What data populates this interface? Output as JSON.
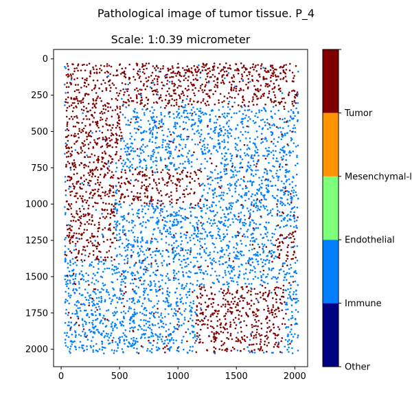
{
  "figure_title": "Pathological image of tumor tissue. P_4",
  "axes_title": "Scale: 1:0.39 micrometer",
  "chart_data": {
    "type": "scatter",
    "title": "Pathological image of tumor tissue. P_4",
    "subtitle": "Scale: 1:0.39 micrometer",
    "xlabel": "",
    "ylabel": "",
    "xlim": [
      -65,
      2110
    ],
    "ylim": [
      2120,
      -65
    ],
    "y_inverted": true,
    "grid": false,
    "xticks": [
      0,
      500,
      1000,
      1500,
      2000
    ],
    "yticks": [
      0,
      250,
      500,
      750,
      1000,
      1250,
      1500,
      1750,
      2000
    ],
    "data_extent": {
      "x": [
        30,
        2030
      ],
      "y": [
        30,
        2030
      ]
    },
    "colors": {
      "Tumor": "#800000",
      "Immune": "#0080ff"
    },
    "tumor_regions": [
      {
        "x": [
          40,
          2020
        ],
        "y": [
          30,
          330
        ]
      },
      {
        "x": [
          40,
          520
        ],
        "y": [
          280,
          700
        ]
      },
      {
        "x": [
          40,
          460
        ],
        "y": [
          700,
          1390
        ]
      },
      {
        "x": [
          1150,
          1920
        ],
        "y": [
          1560,
          2020
        ]
      },
      {
        "x": [
          1850,
          2020
        ],
        "y": [
          1170,
          1400
        ]
      },
      {
        "x": [
          490,
          1200
        ],
        "y": [
          760,
          1000
        ]
      }
    ],
    "colorbar": {
      "cmap": "jet",
      "labels": [
        "Other",
        "Immune",
        "Endothelial",
        "Mesenchymal-like",
        "Tumor"
      ],
      "segments": [
        {
          "from": 0,
          "to": 1,
          "color": "#000080"
        },
        {
          "from": 1,
          "to": 2,
          "color": "#0080ff"
        },
        {
          "from": 2,
          "to": 3,
          "color": "#7dff7a"
        },
        {
          "from": 3,
          "to": 4,
          "color": "#ff9400"
        },
        {
          "from": 4,
          "to": 5,
          "color": "#800000"
        }
      ],
      "ticks": [
        0,
        1,
        2,
        3,
        4,
        5
      ]
    }
  }
}
